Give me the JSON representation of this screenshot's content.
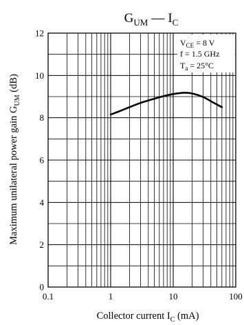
{
  "chart_data": {
    "type": "line",
    "title": {
      "main": "G",
      "main_sub": "UM",
      "dash": "—",
      "var": "I",
      "var_sub": "C"
    },
    "xlabel": {
      "text": "Collector current  I",
      "sub": "C",
      "unit": "  (mA)"
    },
    "ylabel": {
      "text": "Maximum unilateral power gain  G",
      "sub": "UM",
      "unit": "  (dB)"
    },
    "x_scale": "log",
    "xlim": [
      0.1,
      100
    ],
    "ylim": [
      0,
      12
    ],
    "x_ticks": [
      0.1,
      1,
      10,
      100
    ],
    "x_tick_labels": [
      "0.1",
      "1",
      "10",
      "100"
    ],
    "y_ticks": [
      0,
      2,
      4,
      6,
      8,
      10,
      12
    ],
    "y_tick_labels": [
      "0",
      "2",
      "4",
      "6",
      "8",
      "10",
      "12"
    ],
    "grid": true,
    "conditions": [
      {
        "main": "V",
        "sub": "CE",
        "rest": " = 8 V"
      },
      {
        "main": "f = 1.5 GHz",
        "sub": "",
        "rest": ""
      },
      {
        "main": "T",
        "sub": "a",
        "rest": " = 25°C"
      }
    ],
    "series": [
      {
        "x": [
          1,
          1.5,
          2,
          3,
          5,
          7,
          10,
          15,
          20,
          30,
          45,
          60
        ],
        "y": [
          8.15,
          8.35,
          8.5,
          8.7,
          8.9,
          9.02,
          9.12,
          9.18,
          9.15,
          8.98,
          8.7,
          8.5
        ]
      }
    ]
  }
}
